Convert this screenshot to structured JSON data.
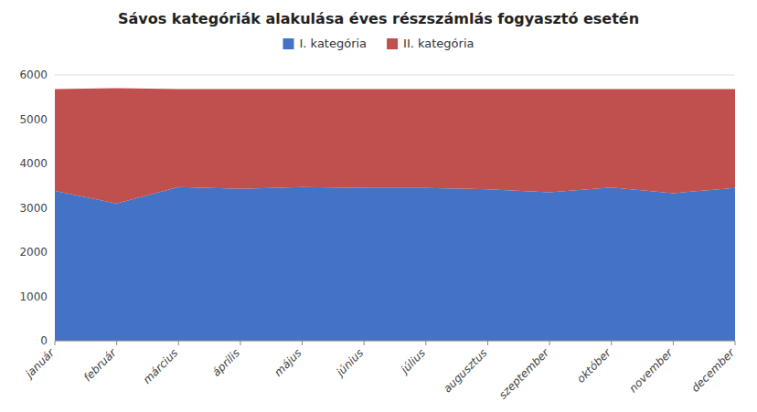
{
  "chart_data": {
    "type": "area",
    "stacked": true,
    "title": "Sávos kategóriák alakulása éves részszámlás fogyasztó esetén",
    "categories": [
      "január",
      "február",
      "március",
      "április",
      "május",
      "június",
      "július",
      "augusztus",
      "szeptember",
      "október",
      "november",
      "december"
    ],
    "series": [
      {
        "name": "I. kategória",
        "color": "#4472C4",
        "values": [
          3380,
          3100,
          3470,
          3430,
          3470,
          3450,
          3450,
          3420,
          3350,
          3460,
          3330,
          3450
        ]
      },
      {
        "name": "II. kategória",
        "color": "#C0504D",
        "values": [
          2300,
          2600,
          2210,
          2250,
          2210,
          2230,
          2230,
          2260,
          2330,
          2220,
          2350,
          2230
        ]
      }
    ],
    "ylim": [
      0,
      6000
    ],
    "yticks": [
      0,
      1000,
      2000,
      3000,
      4000,
      5000,
      6000
    ],
    "grid": true,
    "legend": "top"
  }
}
